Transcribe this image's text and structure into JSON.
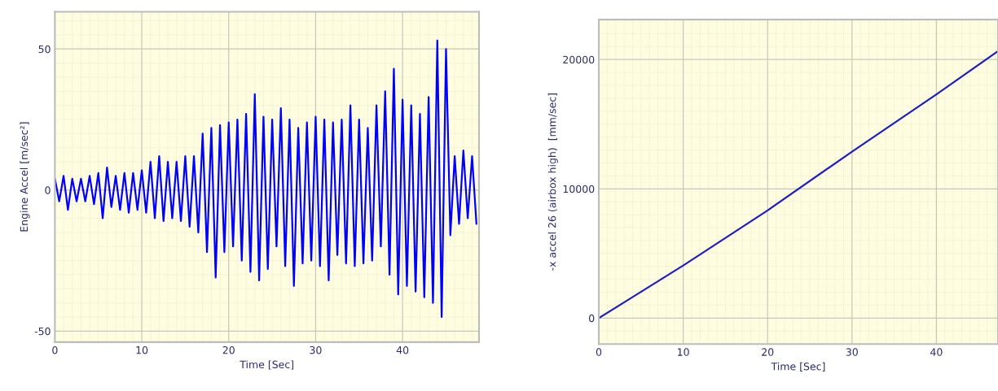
{
  "chart_data": [
    {
      "type": "line",
      "xlabel": "Time [Sec]",
      "ylabel": "Engine Accel [m/sec²]",
      "xlim": [
        0,
        48.8
      ],
      "ylim": [
        -53.9,
        63.2
      ],
      "xticks": [
        0,
        10,
        20,
        30,
        40
      ],
      "yticks": [
        -50,
        0,
        50
      ],
      "grid": true,
      "line_style": "solid",
      "series": [
        {
          "color": "#0000ff",
          "x": [
            0,
            0.5,
            1,
            1.5,
            2,
            2.5,
            3,
            3.5,
            4,
            4.5,
            5,
            5.5,
            6,
            6.5,
            7,
            7.5,
            8,
            8.5,
            9,
            9.5,
            10,
            10.5,
            11,
            11.5,
            12,
            12.5,
            13,
            13.5,
            14,
            14.5,
            15,
            15.5,
            16,
            16.5,
            17,
            17.5,
            18,
            18.5,
            19,
            19.5,
            20,
            20.5,
            21,
            21.5,
            22,
            22.5,
            23,
            23.5,
            24,
            24.5,
            25,
            25.5,
            26,
            26.5,
            27,
            27.5,
            28,
            28.5,
            29,
            29.5,
            30,
            30.5,
            31,
            31.5,
            32,
            32.5,
            33,
            33.5,
            34,
            34.5,
            35,
            35.5,
            36,
            36.5,
            37,
            37.5,
            38,
            38.5,
            39,
            39.5,
            40,
            40.5,
            41,
            41.5,
            42,
            42.5,
            43,
            43.5,
            44,
            44.5,
            45,
            45.5,
            46,
            46.5,
            47,
            47.5,
            48,
            48.5
          ],
          "values": [
            4,
            -4,
            5,
            -7,
            4,
            -4,
            4,
            -4,
            5,
            -5,
            6,
            -10,
            8,
            -6,
            5,
            -7,
            6,
            -8,
            6,
            -7,
            7,
            -8,
            10,
            -10,
            12,
            -11,
            10,
            -10,
            10,
            -11,
            12,
            -13,
            12,
            -15,
            20,
            -22,
            22,
            -31,
            23,
            -22,
            24,
            -20,
            25,
            -25,
            27,
            -29,
            34,
            -32,
            26,
            -28,
            25,
            -20,
            29,
            -27,
            25,
            -34,
            22,
            -26,
            24,
            -25,
            26,
            -27,
            25,
            -32,
            24,
            -23,
            25,
            -26,
            30,
            -27,
            25,
            -26,
            22,
            -25,
            30,
            -20,
            35,
            -30,
            43,
            -37,
            32,
            -34,
            30,
            -36,
            27,
            -38,
            33,
            -40,
            53,
            -45,
            50,
            -16,
            12,
            -12,
            14,
            -10,
            12,
            -12
          ]
        }
      ]
    },
    {
      "type": "line",
      "xlabel": "Time [Sec]",
      "ylabel": "-x accel 26 (airbox high)  [mm/sec]",
      "xlim": [
        0,
        47.3
      ],
      "ylim": [
        -2010,
        23090
      ],
      "xticks": [
        0,
        10,
        20,
        30,
        40
      ],
      "yticks": [
        0,
        10000,
        20000
      ],
      "grid": true,
      "line_style": "solid",
      "series": [
        {
          "color": "#1c1cc8",
          "x": [
            0,
            10,
            20,
            30,
            40,
            47.3
          ],
          "values": [
            0,
            4070,
            8330,
            12870,
            17300,
            20650
          ]
        }
      ]
    }
  ]
}
